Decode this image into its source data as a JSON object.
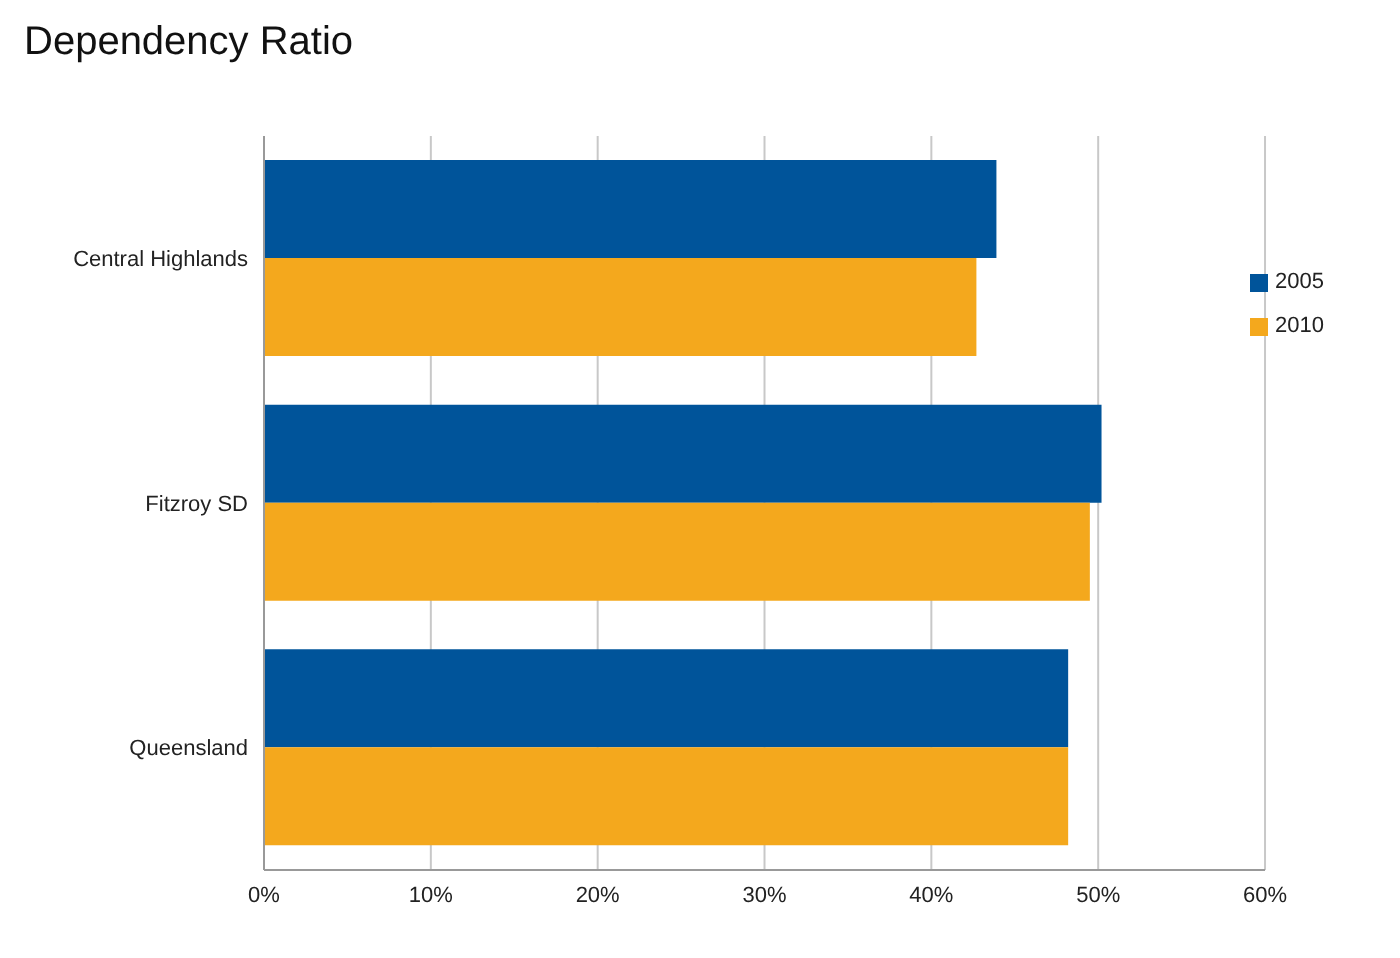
{
  "chart_data": {
    "type": "bar",
    "title": "Dependency Ratio",
    "orientation": "horizontal",
    "categories": [
      "Central Highlands",
      "Fitzroy SD",
      "Queensland"
    ],
    "series": [
      {
        "name": "2005",
        "color": "#00549a",
        "values": [
          43.9,
          50.2,
          48.2
        ]
      },
      {
        "name": "2010",
        "color": "#f4a81d",
        "values": [
          42.7,
          49.5,
          48.2
        ]
      }
    ],
    "xlim": [
      0,
      60
    ],
    "xticks": [
      {
        "value": 0,
        "label": "0%"
      },
      {
        "value": 10,
        "label": "10%"
      },
      {
        "value": 20,
        "label": "20%"
      },
      {
        "value": 30,
        "label": "30%"
      },
      {
        "value": 40,
        "label": "40%"
      },
      {
        "value": 50,
        "label": "50%"
      },
      {
        "value": 60,
        "label": "60%"
      }
    ],
    "grid": "x",
    "legend": "top right"
  }
}
